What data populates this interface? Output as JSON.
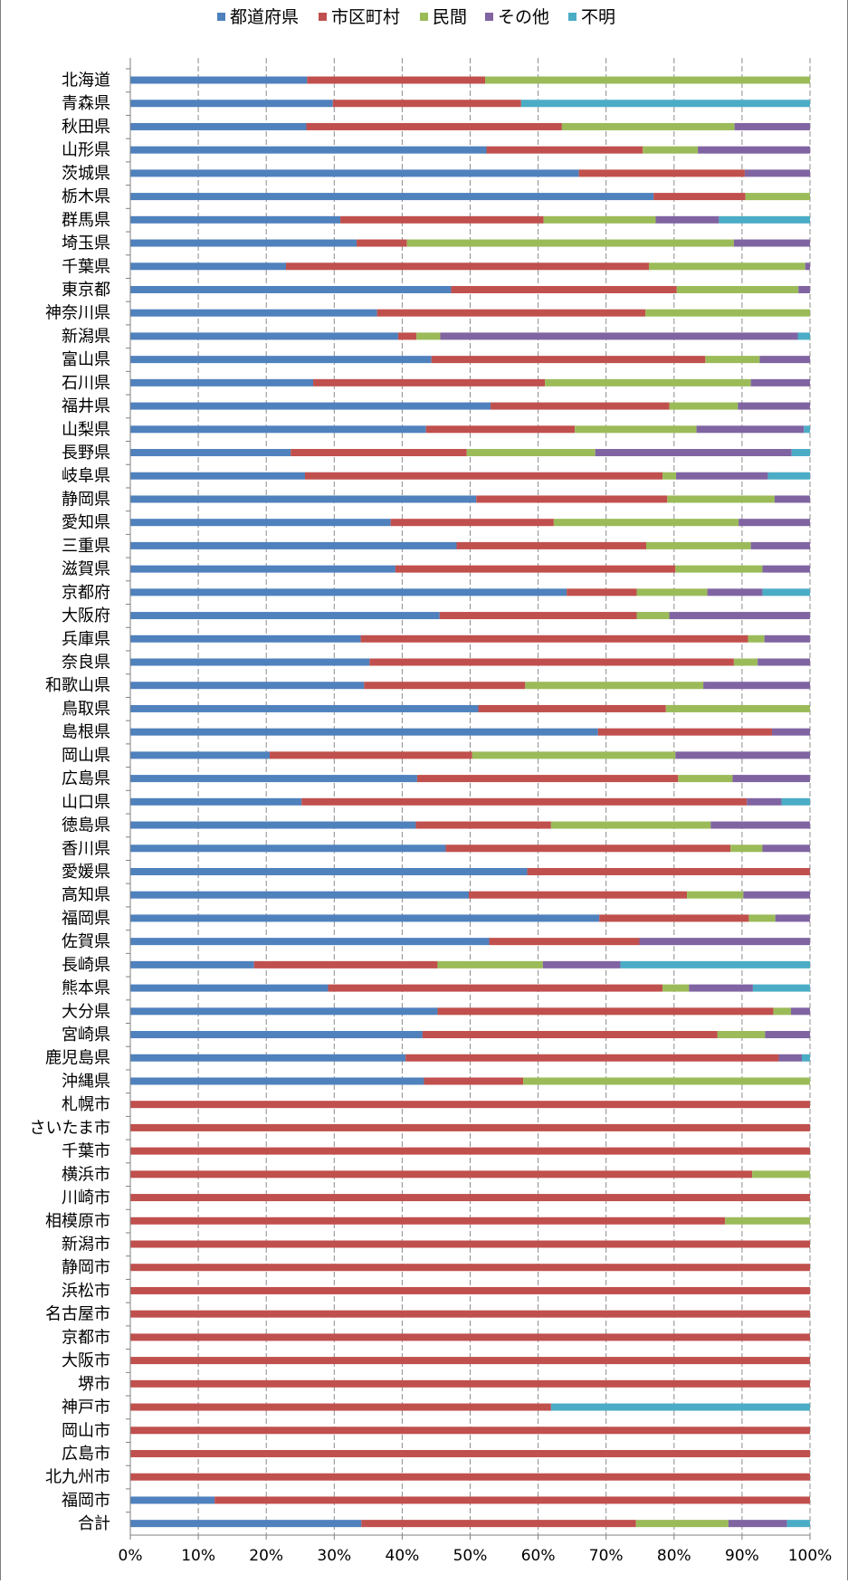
{
  "chart_data": {
    "type": "bar",
    "orientation": "horizontal",
    "stacked": "percent",
    "title": "",
    "xlabel": "",
    "ylabel": "",
    "xlim": [
      0,
      100
    ],
    "x_ticks": [
      "0%",
      "10%",
      "20%",
      "30%",
      "40%",
      "50%",
      "60%",
      "70%",
      "80%",
      "90%",
      "100%"
    ],
    "grid": "vertical-dashed",
    "legend_position": "top",
    "categories": [
      "北海道",
      "青森県",
      "秋田県",
      "山形県",
      "茨城県",
      "栃木県",
      "群馬県",
      "埼玉県",
      "千葉県",
      "東京都",
      "神奈川県",
      "新潟県",
      "富山県",
      "石川県",
      "福井県",
      "山梨県",
      "長野県",
      "岐阜県",
      "静岡県",
      "愛知県",
      "三重県",
      "滋賀県",
      "京都府",
      "大阪府",
      "兵庫県",
      "奈良県",
      "和歌山県",
      "鳥取県",
      "島根県",
      "岡山県",
      "広島県",
      "山口県",
      "徳島県",
      "香川県",
      "愛媛県",
      "高知県",
      "福岡県",
      "佐賀県",
      "長崎県",
      "熊本県",
      "大分県",
      "宮崎県",
      "鹿児島県",
      "沖縄県",
      "札幌市",
      "さいたま市",
      "千葉市",
      "横浜市",
      "川崎市",
      "相模原市",
      "新潟市",
      "静岡市",
      "浜松市",
      "名古屋市",
      "京都市",
      "大阪市",
      "堺市",
      "神戸市",
      "岡山市",
      "広島市",
      "北九州市",
      "福岡市",
      "合計"
    ],
    "series": [
      {
        "name": "都道府県",
        "color": "#4f81bd",
        "values": [
          26,
          29.8,
          25.9,
          52.4,
          66,
          77,
          30.9,
          33.3,
          22.9,
          47.2,
          36.3,
          39.4,
          44.3,
          26.9,
          53,
          43.5,
          23.6,
          25.7,
          50.9,
          38.3,
          48,
          39,
          64.2,
          45.5,
          33.9,
          35.2,
          34.4,
          51.2,
          68.8,
          20.5,
          42.2,
          25.2,
          42,
          46.4,
          58.4,
          49.8,
          69,
          52.8,
          18.2,
          29.1,
          45.2,
          43,
          40.5,
          43.2,
          0,
          0,
          0,
          0,
          0,
          0,
          0,
          0,
          0,
          0,
          0,
          0,
          0,
          0,
          0,
          0,
          0,
          12.4,
          34
        ]
      },
      {
        "name": "市区町村",
        "color": "#c0504d",
        "values": [
          26.2,
          27.7,
          37.6,
          23,
          24.4,
          13.5,
          29.9,
          7.4,
          53.4,
          33.2,
          39.5,
          2.7,
          40.3,
          34.1,
          26.3,
          21.9,
          25.9,
          52.6,
          28.1,
          24,
          27.9,
          41.2,
          10.3,
          29,
          57,
          53.6,
          23.7,
          27.6,
          25.6,
          29.8,
          38.4,
          65.5,
          19.9,
          41.9,
          41.6,
          32.1,
          22,
          22.1,
          27,
          49.2,
          49.4,
          43.4,
          54.9,
          14.6,
          100,
          100,
          100,
          91.5,
          100,
          87.5,
          100,
          100,
          100,
          100,
          100,
          100,
          100,
          61.9,
          100,
          100,
          100,
          87.6,
          40.4
        ]
      },
      {
        "name": "民間",
        "color": "#9bbb59",
        "values": [
          47.8,
          0,
          25.4,
          8.1,
          0,
          9.5,
          16.5,
          48.1,
          23,
          17.9,
          24.2,
          3.5,
          8,
          30.3,
          10.1,
          17.9,
          18.9,
          2,
          15.8,
          27.2,
          15.4,
          12.8,
          10.4,
          4.8,
          2.4,
          3.5,
          26.2,
          21.2,
          0,
          29.9,
          8,
          0,
          23.5,
          4.7,
          0,
          8.3,
          3.9,
          0,
          15.5,
          3.9,
          2.6,
          7,
          0,
          42.2,
          0,
          0,
          0,
          8.5,
          0,
          12.5,
          0,
          0,
          0,
          0,
          0,
          0,
          0,
          0,
          0,
          0,
          0,
          0,
          13.6
        ]
      },
      {
        "name": "その他",
        "color": "#8064a2",
        "values": [
          0,
          0,
          11.1,
          16.5,
          9.6,
          0,
          9.3,
          11.2,
          0.7,
          1.7,
          0,
          52.6,
          7.4,
          8.7,
          10.6,
          15.8,
          28.9,
          13.5,
          5.2,
          10.5,
          8.7,
          7,
          8.1,
          20.7,
          6.7,
          7.7,
          15.7,
          0,
          5.6,
          19.8,
          11.4,
          5.1,
          14.6,
          7,
          0,
          9.8,
          5.1,
          25.1,
          11.4,
          9.4,
          2.8,
          6.6,
          3.4,
          0,
          0,
          0,
          0,
          0,
          0,
          0,
          0,
          0,
          0,
          0,
          0,
          0,
          0,
          0,
          0,
          0,
          0,
          0,
          8.6
        ]
      },
      {
        "name": "不明",
        "color": "#4bacc6",
        "values": [
          0,
          42.5,
          0,
          0,
          0,
          0,
          13.4,
          0,
          0,
          0,
          0,
          1.8,
          0,
          0,
          0,
          0.9,
          2.7,
          6.2,
          0,
          0,
          0,
          0,
          7,
          0,
          0,
          0,
          0,
          0,
          0,
          0,
          0,
          4.2,
          0,
          0,
          0,
          0,
          0,
          0,
          27.9,
          8.4,
          0,
          0,
          1.2,
          0,
          0,
          0,
          0,
          0,
          0,
          0,
          0,
          0,
          0,
          0,
          0,
          0,
          0,
          38.1,
          0,
          0,
          0,
          0,
          3.4
        ]
      }
    ]
  }
}
